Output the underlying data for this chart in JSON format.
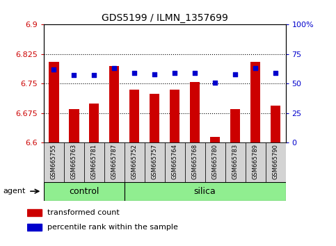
{
  "title": "GDS5199 / ILMN_1357699",
  "samples": [
    "GSM665755",
    "GSM665763",
    "GSM665781",
    "GSM665787",
    "GSM665752",
    "GSM665757",
    "GSM665764",
    "GSM665768",
    "GSM665780",
    "GSM665783",
    "GSM665789",
    "GSM665790"
  ],
  "transformed_count": [
    6.805,
    6.685,
    6.7,
    6.795,
    6.735,
    6.725,
    6.735,
    6.755,
    6.615,
    6.685,
    6.805,
    6.695
  ],
  "percentile_rank": [
    62,
    57,
    57,
    63,
    59,
    58,
    59,
    59,
    51,
    58,
    63,
    59
  ],
  "control_count": 4,
  "ylim_left": [
    6.6,
    6.9
  ],
  "ylim_right": [
    0,
    100
  ],
  "yticks_left": [
    6.6,
    6.675,
    6.75,
    6.825,
    6.9
  ],
  "yticks_right": [
    0,
    25,
    50,
    75,
    100
  ],
  "ytick_labels_right": [
    "0",
    "25",
    "50",
    "75",
    "100%"
  ],
  "hlines": [
    6.825,
    6.75,
    6.675
  ],
  "bar_color": "#cc0000",
  "dot_color": "#0000cc",
  "group_color": "#90ee90",
  "sample_box_color": "#d3d3d3",
  "agent_label": "agent",
  "group_labels": [
    "control",
    "silica"
  ],
  "legend_bar": "transformed count",
  "legend_dot": "percentile rank within the sample",
  "tick_color_left": "#cc0000",
  "tick_color_right": "#0000cc",
  "bar_width": 0.5,
  "title_fontsize": 10,
  "axis_fontsize": 8,
  "legend_fontsize": 8,
  "sample_fontsize": 6
}
